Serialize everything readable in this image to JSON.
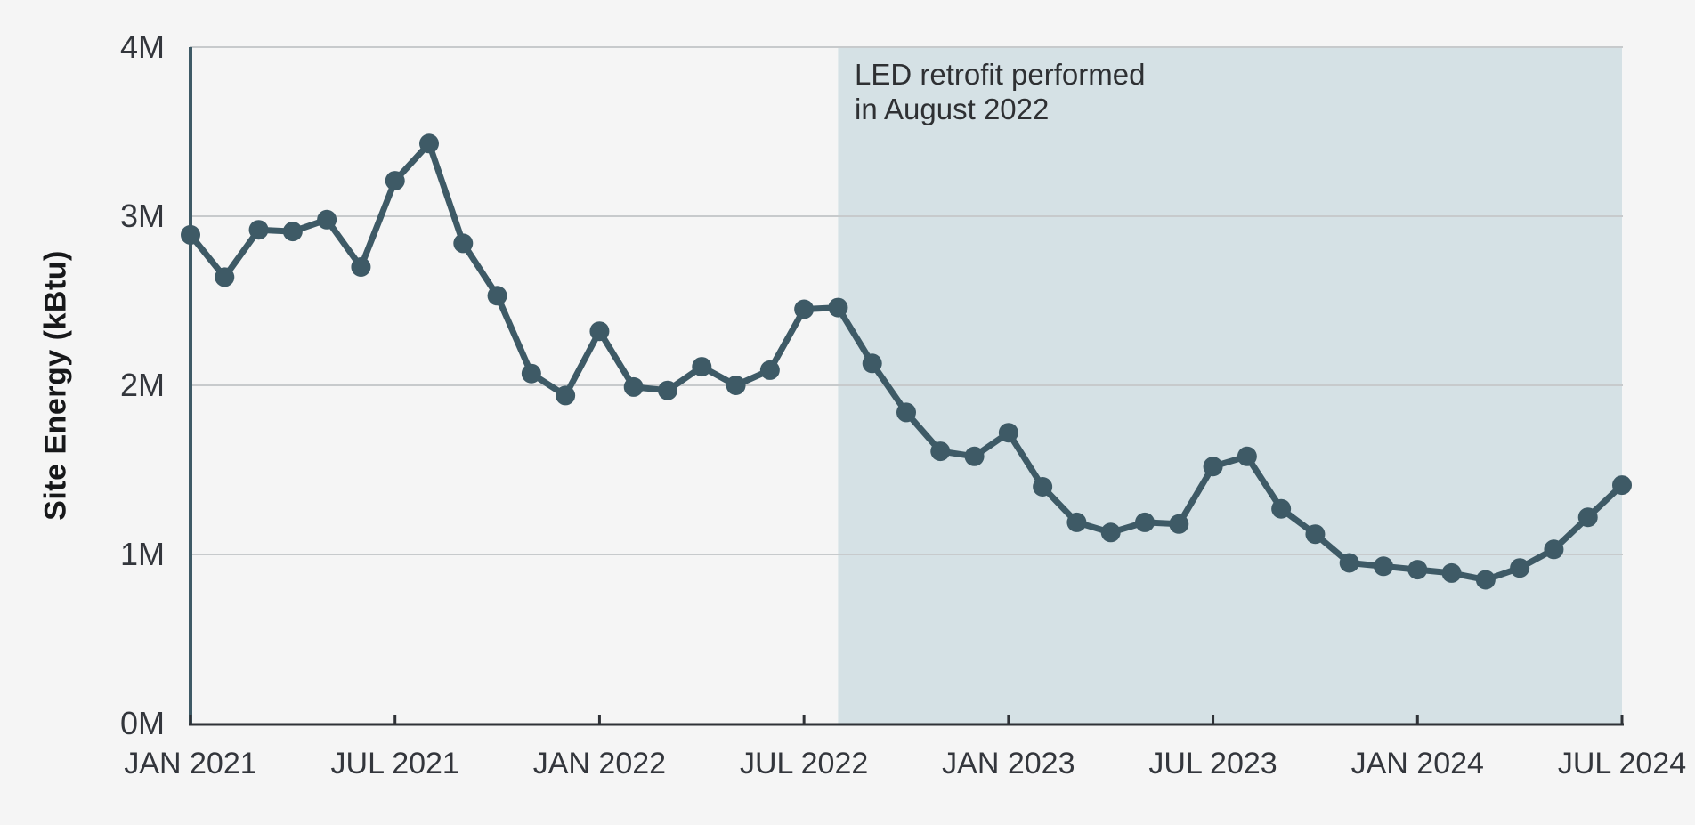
{
  "figure": {
    "background_color": "#f5f5f5",
    "annotation": {
      "line1": "LED retrofit performed",
      "line2": "in August 2022"
    }
  },
  "chart_data": {
    "type": "line",
    "title": "",
    "xlabel": "",
    "ylabel": "Site Energy (kBtu)",
    "y_unit": "kBtu (millions)",
    "ylim_million": [
      0,
      4
    ],
    "y_grid_values_million": [
      1,
      2,
      3,
      4
    ],
    "y_tick_labels": [
      "0M",
      "1M",
      "2M",
      "3M",
      "4M"
    ],
    "y_tick_values_million": [
      0,
      1,
      2,
      3,
      4
    ],
    "x_tick_labels": [
      "JAN 2021",
      "JUL 2021",
      "JAN 2022",
      "JUL 2022",
      "JAN 2023",
      "JUL 2023",
      "JAN 2024",
      "JUL 2024"
    ],
    "x_tick_indices": [
      0,
      6,
      12,
      18,
      24,
      30,
      36,
      42
    ],
    "grid": true,
    "legend": "none",
    "categories": [
      "JAN 2021",
      "FEB 2021",
      "MAR 2021",
      "APR 2021",
      "MAY 2021",
      "JUN 2021",
      "JUL 2021",
      "AUG 2021",
      "SEP 2021",
      "OCT 2021",
      "NOV 2021",
      "DEC 2021",
      "JAN 2022",
      "FEB 2022",
      "MAR 2022",
      "APR 2022",
      "MAY 2022",
      "JUN 2022",
      "JUL 2022",
      "AUG 2022",
      "SEP 2022",
      "OCT 2022",
      "NOV 2022",
      "DEC 2022",
      "JAN 2023",
      "FEB 2023",
      "MAR 2023",
      "APR 2023",
      "MAY 2023",
      "JUN 2023",
      "JUL 2023",
      "AUG 2023",
      "SEP 2023",
      "OCT 2023",
      "NOV 2023",
      "DEC 2023",
      "JAN 2024",
      "FEB 2024",
      "MAR 2024",
      "APR 2024",
      "MAY 2024",
      "JUN 2024",
      "JUL 2024"
    ],
    "values_million_kbtu": [
      2.89,
      2.64,
      2.92,
      2.91,
      2.98,
      2.7,
      3.21,
      3.43,
      2.84,
      2.53,
      2.07,
      1.94,
      2.32,
      1.99,
      1.97,
      2.11,
      2.0,
      2.09,
      2.45,
      2.46,
      2.13,
      1.84,
      1.61,
      1.58,
      1.72,
      1.4,
      1.19,
      1.13,
      1.19,
      1.18,
      1.52,
      1.58,
      1.27,
      1.12,
      0.95,
      0.93,
      0.91,
      0.89,
      0.85,
      0.92,
      1.03,
      1.22,
      1.41
    ],
    "shaded_region": {
      "start_category": "AUG 2022",
      "end_category": "JUL 2024",
      "label": "LED retrofit performed in August 2022"
    },
    "colors": {
      "series": "#3e5a66",
      "shade": "#d5e1e5",
      "grid": "#c7cacc",
      "x_axis": "#2f3237",
      "y_axis": "#3e5a66",
      "tick": "#2f3237",
      "text": "#33363c",
      "background": "#f5f5f5"
    }
  }
}
